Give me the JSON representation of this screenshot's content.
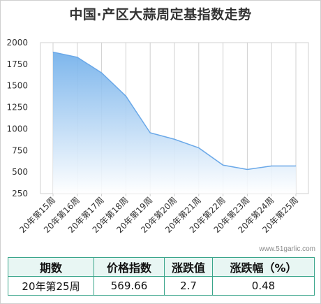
{
  "title": "中国·产区大蒜周定基指数走势",
  "watermark": "www.51garlic.com",
  "chart_data": {
    "type": "area",
    "title": "中国·产区大蒜周定基指数走势",
    "categories": [
      "20年第15周",
      "20年第16周",
      "20年第17周",
      "20年第18周",
      "20年第19周",
      "20年第20周",
      "20年第21周",
      "20年第22周",
      "20年第23周",
      "20年第24周",
      "20年第25周"
    ],
    "series": [
      {
        "values": [
          1890,
          1830,
          1650,
          1380,
          955,
          880,
          780,
          580,
          530,
          570,
          570
        ]
      }
    ],
    "yticks": [
      250,
      500,
      750,
      1000,
      1250,
      1500,
      1750,
      2000
    ],
    "ylim": [
      250,
      2000
    ],
    "grid": "vertical",
    "colors": {
      "line": "#6aa8e8",
      "fill_top": "#6faeea",
      "fill_bottom": "#ffffff",
      "grid": "#d0d0d0",
      "axis_text": "#333333"
    }
  },
  "table": {
    "headers": [
      "期数",
      "价格指数",
      "涨跌值",
      "涨跌幅（%）"
    ],
    "row": [
      "20年第25周",
      "569.66",
      "2.7",
      "0.48"
    ]
  }
}
